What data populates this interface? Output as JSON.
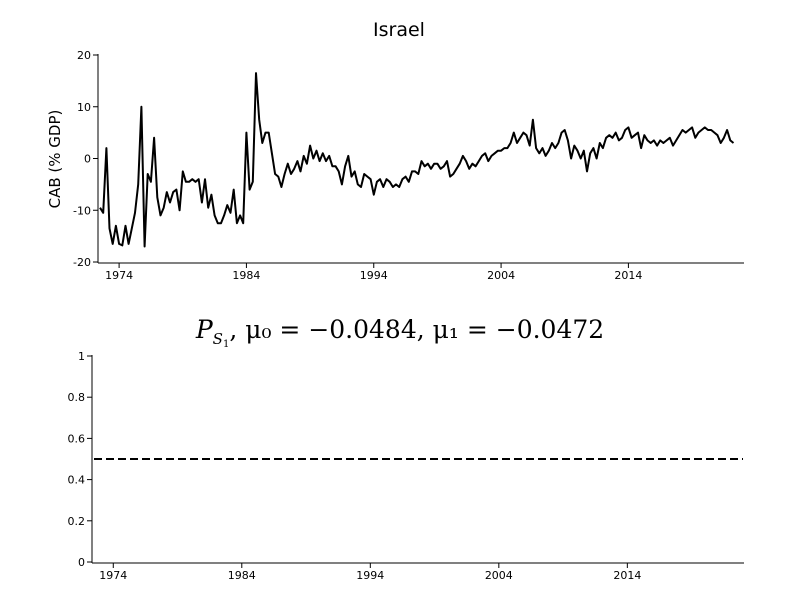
{
  "chart_data": [
    {
      "type": "line",
      "title": "Israel",
      "xlabel": "",
      "ylabel": "CAB (% GDP)",
      "xlim": [
        1972.5,
        2023.0
      ],
      "ylim": [
        -20,
        20
      ],
      "x_ticks": [
        1974,
        1984,
        1994,
        2004,
        2014
      ],
      "y_ticks": [
        -20,
        -10,
        0,
        10,
        20
      ],
      "grid": false,
      "series": [
        {
          "color": "#000000",
          "points": [
            [
              1972.5,
              -9.5
            ],
            [
              1972.75,
              -10.5
            ],
            [
              1973.0,
              2.0
            ],
            [
              1973.25,
              -13.5
            ],
            [
              1973.5,
              -16.5
            ],
            [
              1973.75,
              -13.0
            ],
            [
              1974.0,
              -16.5
            ],
            [
              1974.25,
              -16.8
            ],
            [
              1974.5,
              -13.0
            ],
            [
              1974.75,
              -16.5
            ],
            [
              1975.0,
              -13.5
            ],
            [
              1975.25,
              -10.5
            ],
            [
              1975.5,
              -5.0
            ],
            [
              1975.75,
              10.0
            ],
            [
              1976.0,
              -17.0
            ],
            [
              1976.25,
              -3.0
            ],
            [
              1976.5,
              -4.5
            ],
            [
              1976.75,
              4.0
            ],
            [
              1977.0,
              -7.5
            ],
            [
              1977.25,
              -11.0
            ],
            [
              1977.5,
              -9.5
            ],
            [
              1977.75,
              -6.5
            ],
            [
              1978.0,
              -8.5
            ],
            [
              1978.25,
              -6.5
            ],
            [
              1978.5,
              -6.0
            ],
            [
              1978.75,
              -10.0
            ],
            [
              1979.0,
              -2.5
            ],
            [
              1979.25,
              -4.5
            ],
            [
              1979.5,
              -4.5
            ],
            [
              1979.75,
              -4.0
            ],
            [
              1980.0,
              -4.5
            ],
            [
              1980.25,
              -4.0
            ],
            [
              1980.5,
              -8.5
            ],
            [
              1980.75,
              -4.0
            ],
            [
              1981.0,
              -9.5
            ],
            [
              1981.25,
              -7.0
            ],
            [
              1981.5,
              -11.0
            ],
            [
              1981.75,
              -12.5
            ],
            [
              1982.0,
              -12.5
            ],
            [
              1982.25,
              -11.0
            ],
            [
              1982.5,
              -9.0
            ],
            [
              1982.75,
              -10.5
            ],
            [
              1983.0,
              -6.0
            ],
            [
              1983.25,
              -12.5
            ],
            [
              1983.5,
              -11.0
            ],
            [
              1983.75,
              -12.5
            ],
            [
              1984.0,
              5.0
            ],
            [
              1984.25,
              -6.0
            ],
            [
              1984.5,
              -4.5
            ],
            [
              1984.75,
              16.5
            ],
            [
              1985.0,
              7.5
            ],
            [
              1985.25,
              3.0
            ],
            [
              1985.5,
              5.0
            ],
            [
              1985.75,
              5.0
            ],
            [
              1986.0,
              1.0
            ],
            [
              1986.25,
              -3.0
            ],
            [
              1986.5,
              -3.5
            ],
            [
              1986.75,
              -5.5
            ],
            [
              1987.0,
              -3.0
            ],
            [
              1987.25,
              -1.0
            ],
            [
              1987.5,
              -3.0
            ],
            [
              1987.75,
              -2.0
            ],
            [
              1988.0,
              -0.5
            ],
            [
              1988.25,
              -2.5
            ],
            [
              1988.5,
              0.5
            ],
            [
              1988.75,
              -1.0
            ],
            [
              1989.0,
              2.5
            ],
            [
              1989.25,
              0.0
            ],
            [
              1989.5,
              1.5
            ],
            [
              1989.75,
              -0.5
            ],
            [
              1990.0,
              1.0
            ],
            [
              1990.25,
              -0.5
            ],
            [
              1990.5,
              0.5
            ],
            [
              1990.75,
              -1.5
            ],
            [
              1991.0,
              -1.5
            ],
            [
              1991.25,
              -2.5
            ],
            [
              1991.5,
              -5.0
            ],
            [
              1991.75,
              -1.5
            ],
            [
              1992.0,
              0.5
            ],
            [
              1992.25,
              -3.5
            ],
            [
              1992.5,
              -2.5
            ],
            [
              1992.75,
              -5.0
            ],
            [
              1993.0,
              -5.5
            ],
            [
              1993.25,
              -3.0
            ],
            [
              1993.5,
              -3.5
            ],
            [
              1993.75,
              -4.0
            ],
            [
              1994.0,
              -7.0
            ],
            [
              1994.25,
              -4.5
            ],
            [
              1994.5,
              -4.0
            ],
            [
              1994.75,
              -5.5
            ],
            [
              1995.0,
              -4.0
            ],
            [
              1995.25,
              -4.5
            ],
            [
              1995.5,
              -5.5
            ],
            [
              1995.75,
              -5.0
            ],
            [
              1996.0,
              -5.5
            ],
            [
              1996.25,
              -4.0
            ],
            [
              1996.5,
              -3.5
            ],
            [
              1996.75,
              -4.5
            ],
            [
              1997.0,
              -2.5
            ],
            [
              1997.25,
              -2.5
            ],
            [
              1997.5,
              -3.0
            ],
            [
              1997.75,
              -0.5
            ],
            [
              1998.0,
              -1.5
            ],
            [
              1998.25,
              -1.0
            ],
            [
              1998.5,
              -2.0
            ],
            [
              1998.75,
              -1.0
            ],
            [
              1999.0,
              -1.0
            ],
            [
              1999.25,
              -2.0
            ],
            [
              1999.5,
              -1.5
            ],
            [
              1999.75,
              -0.5
            ],
            [
              2000.0,
              -3.5
            ],
            [
              2000.25,
              -3.0
            ],
            [
              2000.5,
              -2.0
            ],
            [
              2000.75,
              -1.0
            ],
            [
              2001.0,
              0.5
            ],
            [
              2001.25,
              -0.5
            ],
            [
              2001.5,
              -2.0
            ],
            [
              2001.75,
              -1.0
            ],
            [
              2002.0,
              -1.5
            ],
            [
              2002.25,
              -0.5
            ],
            [
              2002.5,
              0.5
            ],
            [
              2002.75,
              1.0
            ],
            [
              2003.0,
              -0.5
            ],
            [
              2003.25,
              0.5
            ],
            [
              2003.5,
              1.0
            ],
            [
              2003.75,
              1.5
            ],
            [
              2004.0,
              1.5
            ],
            [
              2004.25,
              2.0
            ],
            [
              2004.5,
              2.0
            ],
            [
              2004.75,
              3.0
            ],
            [
              2005.0,
              5.0
            ],
            [
              2005.25,
              3.0
            ],
            [
              2005.5,
              4.0
            ],
            [
              2005.75,
              5.0
            ],
            [
              2006.0,
              4.5
            ],
            [
              2006.25,
              2.5
            ],
            [
              2006.5,
              7.5
            ],
            [
              2006.75,
              2.0
            ],
            [
              2007.0,
              1.0
            ],
            [
              2007.25,
              2.0
            ],
            [
              2007.5,
              0.5
            ],
            [
              2007.75,
              1.5
            ],
            [
              2008.0,
              3.0
            ],
            [
              2008.25,
              2.0
            ],
            [
              2008.5,
              3.0
            ],
            [
              2008.75,
              5.0
            ],
            [
              2009.0,
              5.5
            ],
            [
              2009.25,
              3.5
            ],
            [
              2009.5,
              0.0
            ],
            [
              2009.75,
              2.5
            ],
            [
              2010.0,
              1.5
            ],
            [
              2010.25,
              0.0
            ],
            [
              2010.5,
              1.5
            ],
            [
              2010.75,
              -2.5
            ],
            [
              2011.0,
              1.0
            ],
            [
              2011.25,
              2.0
            ],
            [
              2011.5,
              0.0
            ],
            [
              2011.75,
              3.0
            ],
            [
              2012.0,
              2.0
            ],
            [
              2012.25,
              4.0
            ],
            [
              2012.5,
              4.5
            ],
            [
              2012.75,
              4.0
            ],
            [
              2013.0,
              5.0
            ],
            [
              2013.25,
              3.5
            ],
            [
              2013.5,
              4.0
            ],
            [
              2013.75,
              5.5
            ],
            [
              2014.0,
              6.0
            ],
            [
              2014.25,
              4.0
            ],
            [
              2014.5,
              4.5
            ],
            [
              2014.75,
              5.0
            ],
            [
              2015.0,
              2.0
            ],
            [
              2015.25,
              4.5
            ],
            [
              2015.5,
              3.5
            ],
            [
              2015.75,
              3.0
            ],
            [
              2016.0,
              3.5
            ],
            [
              2016.25,
              2.5
            ],
            [
              2016.5,
              3.5
            ],
            [
              2016.75,
              3.0
            ],
            [
              2017.0,
              3.5
            ],
            [
              2017.25,
              4.0
            ],
            [
              2017.5,
              2.5
            ],
            [
              2017.75,
              3.5
            ],
            [
              2018.0,
              4.5
            ],
            [
              2018.25,
              5.5
            ],
            [
              2018.5,
              5.0
            ],
            [
              2018.75,
              5.5
            ],
            [
              2019.0,
              6.0
            ],
            [
              2019.25,
              4.0
            ],
            [
              2019.5,
              5.0
            ],
            [
              2019.75,
              5.5
            ],
            [
              2020.0,
              6.0
            ],
            [
              2020.25,
              5.5
            ],
            [
              2020.5,
              5.5
            ],
            [
              2020.75,
              5.0
            ],
            [
              2021.0,
              4.5
            ],
            [
              2021.25,
              3.0
            ],
            [
              2021.5,
              4.0
            ],
            [
              2021.75,
              5.5
            ],
            [
              2022.0,
              3.5
            ],
            [
              2022.25,
              3.0
            ]
          ]
        }
      ]
    },
    {
      "type": "line",
      "title_main": "P",
      "title_sub": "S",
      "title_subsub": "1",
      "title_rest": ", μ₀ = −0.0484, μ₁ = −0.0472",
      "title_mu0": "−0.0484",
      "title_mu1": "−0.0472",
      "xlabel": "",
      "ylabel": "",
      "xlim": [
        1972.5,
        2023.0
      ],
      "ylim": [
        0,
        1
      ],
      "x_ticks": [
        1974,
        1984,
        1994,
        2004,
        2014
      ],
      "y_ticks": [
        0,
        0.2,
        0.4,
        0.6,
        0.8,
        1
      ],
      "y_tick_labels": [
        "0",
        "0.2",
        "0.4",
        "0.6",
        "0.8",
        "1"
      ],
      "grid": false,
      "series": [
        {
          "style": "dashed",
          "color": "#000000",
          "points": [
            [
              1972.5,
              0.5
            ],
            [
              2023.0,
              0.5
            ]
          ]
        }
      ]
    }
  ]
}
